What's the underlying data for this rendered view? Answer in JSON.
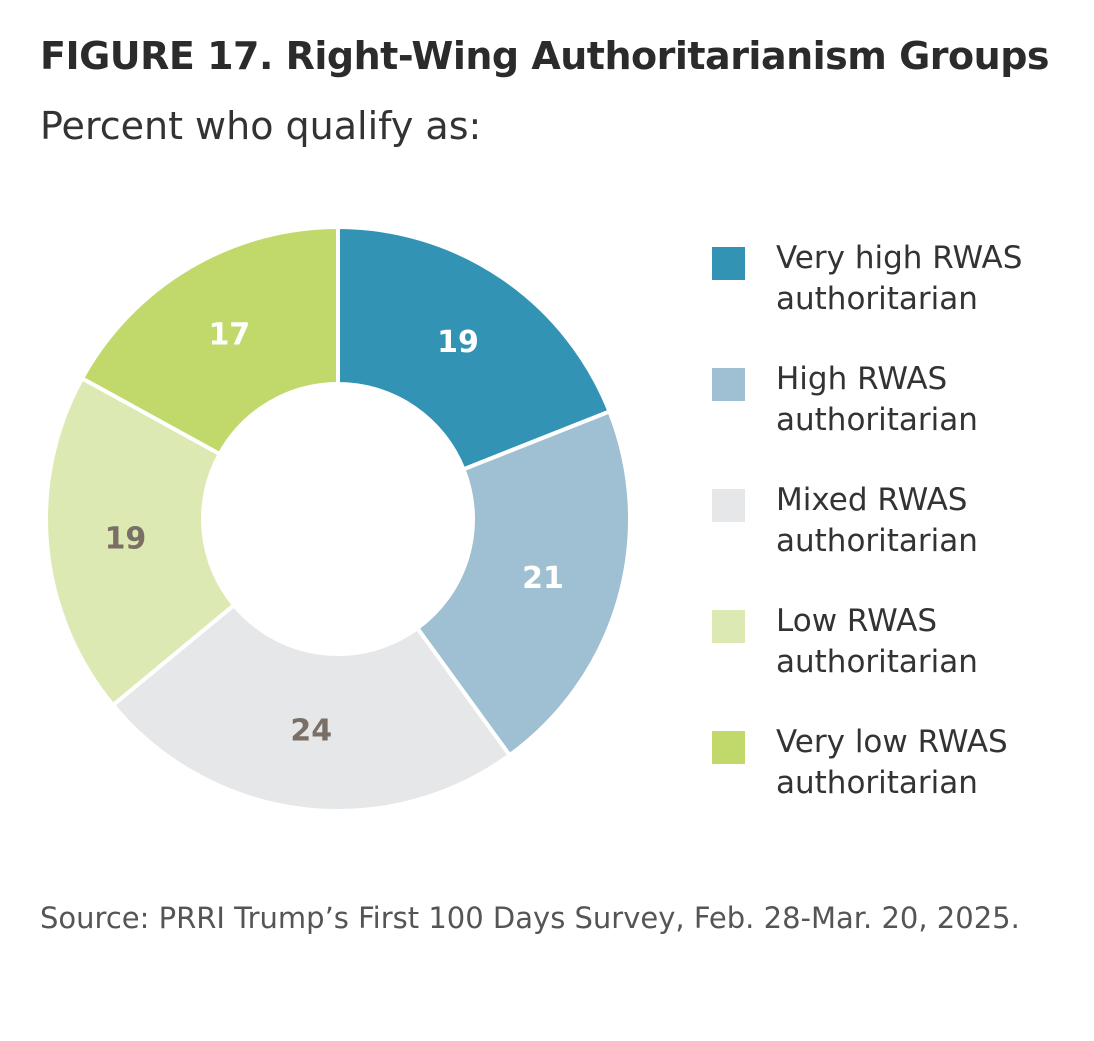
{
  "title": "FIGURE 17.  Right-Wing Authoritarianism Groups",
  "subtitle": "Percent who qualify as:",
  "source": "Source: PRRI Trump’s First 100 Days Survey, Feb. 28-Mar. 20, 2025.",
  "chart_data": {
    "type": "pie",
    "variant": "donut",
    "start": "top",
    "direction": "clockwise",
    "legend_position": "right",
    "series": [
      {
        "name": "Very high RWAS authoritarian",
        "value": 19,
        "color": "#3293b4",
        "label_color": "#ffffff"
      },
      {
        "name": "High RWAS authoritarian",
        "value": 21,
        "color": "#9fbfd2",
        "label_color": "#ffffff"
      },
      {
        "name": "Mixed RWAS authoritarian",
        "value": 24,
        "color": "#e6e7e8",
        "label_color": "#7a6f66"
      },
      {
        "name": "Low RWAS authoritarian",
        "value": 19,
        "color": "#dde9b2",
        "label_color": "#7a6f66"
      },
      {
        "name": "Very low RWAS authoritarian",
        "value": 17,
        "color": "#c1d96b",
        "label_color": "#ffffff"
      }
    ]
  }
}
